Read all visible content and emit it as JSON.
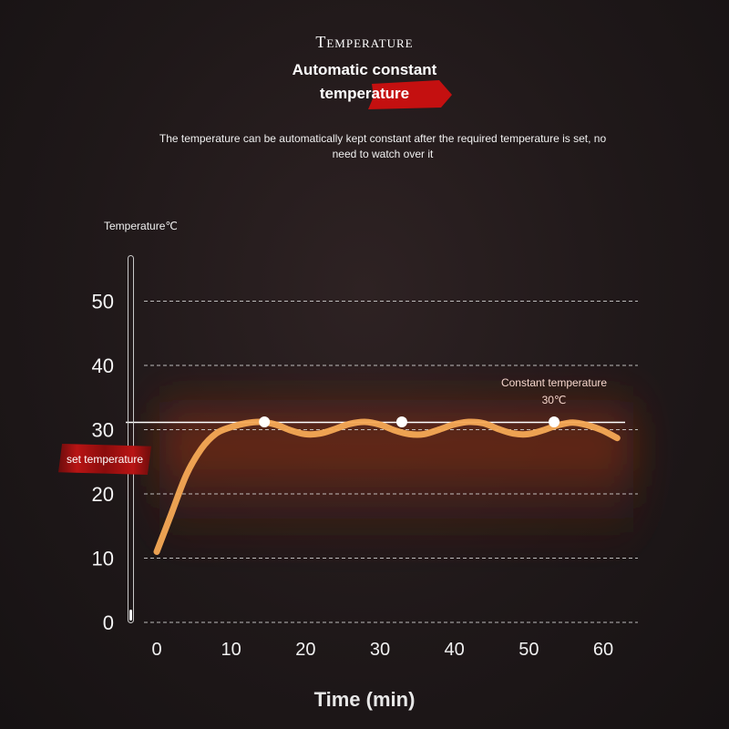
{
  "page": {
    "heading": "Temperature",
    "subtitle_line1": "Automatic constant",
    "subtitle_line2": "temperature",
    "description": "The temperature can be automatically kept constant after the required temperature is set, no need to watch over it",
    "accent_color": "#c41010",
    "curve_color": "#f5a955"
  },
  "chart_data": {
    "type": "line",
    "ylabel": "Temperature℃",
    "xlabel": "Time (min)",
    "xlim": [
      0,
      60
    ],
    "ylim": [
      0,
      50
    ],
    "x_ticks": [
      "0",
      "10",
      "20",
      "30",
      "40",
      "50",
      "60"
    ],
    "y_ticks": [
      "0",
      "10",
      "20",
      "30",
      "40",
      "50"
    ],
    "grid": true,
    "set_temperature": 30,
    "set_temperature_label": "set temperature",
    "constant_label": "Constant temperature",
    "constant_value_label": "30℃",
    "series": [
      {
        "x": [
          0,
          2,
          4,
          6,
          8,
          10,
          12,
          14,
          16,
          18,
          20,
          22,
          24,
          26,
          28,
          30,
          32,
          34,
          36,
          38,
          40,
          42,
          44,
          46,
          48,
          50,
          52,
          54,
          56,
          58,
          60,
          62
        ],
        "values": [
          11,
          17,
          23,
          27,
          29.4,
          30.4,
          31,
          31.2,
          30.8,
          29.9,
          29.3,
          29.4,
          30.1,
          30.9,
          31.2,
          30.8,
          29.9,
          29.3,
          29.3,
          30.0,
          30.8,
          31.2,
          31.0,
          30.1,
          29.4,
          29.3,
          29.9,
          30.7,
          31.1,
          30.7,
          29.9,
          28.7
        ]
      }
    ],
    "markers": [
      {
        "x": 14.5,
        "y": 31.2
      },
      {
        "x": 33,
        "y": 31.2
      },
      {
        "x": 53.5,
        "y": 31.2
      }
    ]
  }
}
